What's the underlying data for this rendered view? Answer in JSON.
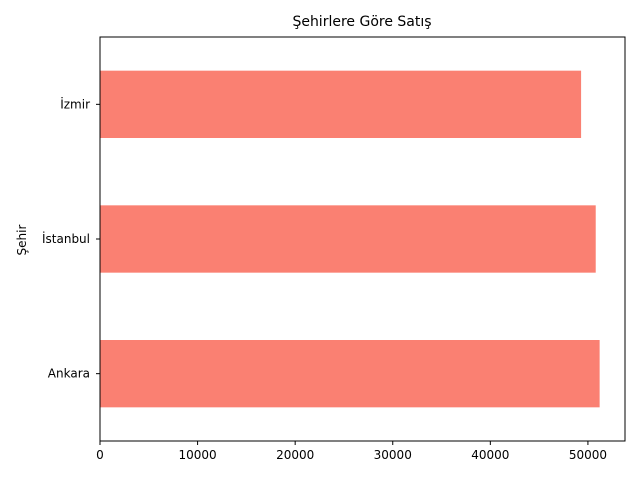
{
  "chart_data": {
    "type": "bar",
    "orientation": "horizontal",
    "title": "Şehirlere Göre Satış",
    "xlabel": "",
    "ylabel": "Şehir",
    "categories": [
      "Ankara",
      "İstanbul",
      "İzmir"
    ],
    "values": [
      51200,
      50800,
      49300
    ],
    "xlim": [
      0,
      53800
    ],
    "xticks": [
      0,
      10000,
      20000,
      30000,
      40000,
      50000
    ],
    "grid": false,
    "legend": "none",
    "bar_color": "#fa8072"
  }
}
